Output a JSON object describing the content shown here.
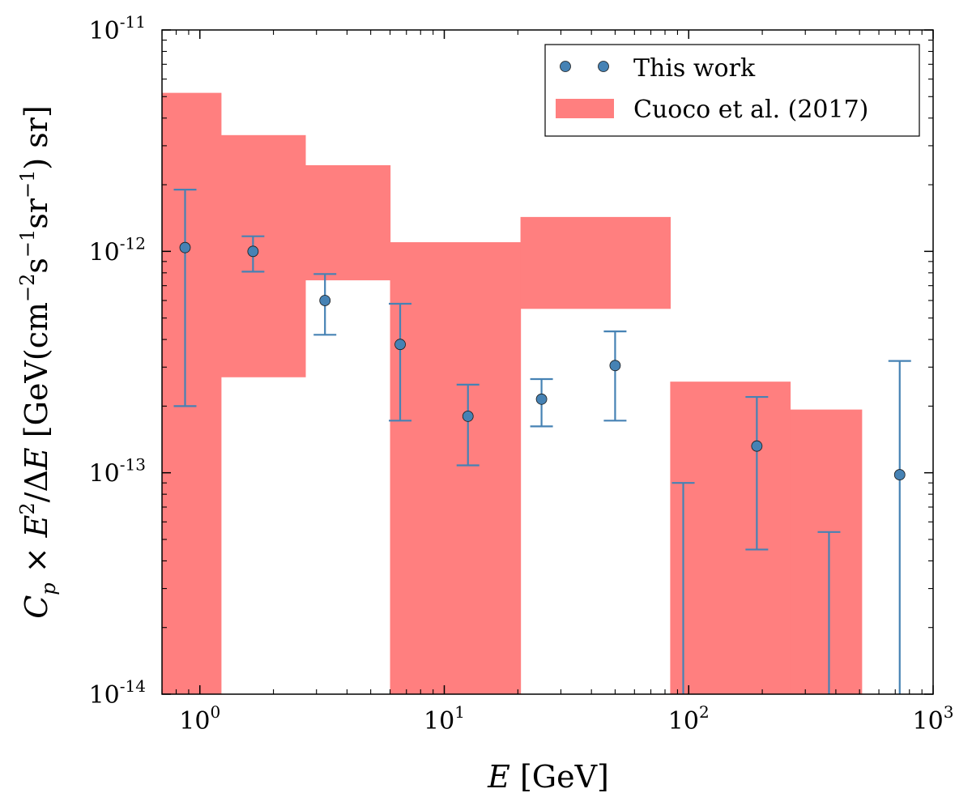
{
  "chart_data": {
    "type": "scatter",
    "title": "",
    "xlabel": "E [GeV]",
    "ylabel": "C_p × E^2/ΔE [GeV(cm^-2 s^-1 sr^-1) sr]",
    "x_scale": "log",
    "y_scale": "log",
    "xlim": [
      0.7,
      1000
    ],
    "ylim": [
      1e-14,
      1e-11
    ],
    "x_ticks": [
      {
        "value": 1,
        "base": "10",
        "exp": "0"
      },
      {
        "value": 10,
        "base": "10",
        "exp": "1"
      },
      {
        "value": 100,
        "base": "10",
        "exp": "2"
      },
      {
        "value": 1000,
        "base": "10",
        "exp": "3"
      }
    ],
    "y_ticks": [
      {
        "value": 1e-14,
        "base": "10",
        "exp": "-14"
      },
      {
        "value": 1e-13,
        "base": "10",
        "exp": "-13"
      },
      {
        "value": 1e-12,
        "base": "10",
        "exp": "-12"
      },
      {
        "value": 1e-11,
        "base": "10",
        "exp": "-11"
      }
    ],
    "colors": {
      "points": "#4682b4",
      "band": "#ff7f7f"
    },
    "legend": {
      "position": "top-right",
      "entries": [
        {
          "label": "This work",
          "kind": "points"
        },
        {
          "label": "Cuoco et al. (2017)",
          "kind": "band"
        }
      ]
    },
    "series": [
      {
        "name": "This work",
        "points": [
          {
            "x": 0.87,
            "y": 1.04e-12,
            "yerr_lo": 2e-13,
            "yerr_hi": 1.9e-12
          },
          {
            "x": 1.65,
            "y": 1e-12,
            "yerr_lo": 8.1e-13,
            "yerr_hi": 1.17e-12
          },
          {
            "x": 3.25,
            "y": 6e-13,
            "yerr_lo": 4.2e-13,
            "yerr_hi": 7.9e-13
          },
          {
            "x": 6.6,
            "y": 3.8e-13,
            "yerr_lo": 1.72e-13,
            "yerr_hi": 5.8e-13
          },
          {
            "x": 12.5,
            "y": 1.8e-13,
            "yerr_lo": 1.08e-13,
            "yerr_hi": 2.5e-13
          },
          {
            "x": 25,
            "y": 2.15e-13,
            "yerr_lo": 1.62e-13,
            "yerr_hi": 2.65e-13
          },
          {
            "x": 50,
            "y": 3.05e-13,
            "yerr_lo": 1.72e-13,
            "yerr_hi": 4.35e-13
          },
          {
            "x": 95,
            "y": null,
            "yerr_lo": 1e-14,
            "yerr_hi": 9e-14
          },
          {
            "x": 190,
            "y": 1.32e-13,
            "yerr_lo": 4.5e-14,
            "yerr_hi": 2.2e-13
          },
          {
            "x": 375,
            "y": null,
            "yerr_lo": 1e-14,
            "yerr_hi": 5.4e-14
          },
          {
            "x": 730,
            "y": 9.8e-14,
            "yerr_lo": 1e-14,
            "yerr_hi": 3.2e-13
          }
        ]
      },
      {
        "name": "Cuoco et al. (2017)",
        "bands": [
          {
            "x0": 0.7,
            "x1": 1.22,
            "y_lo": 1e-14,
            "y_hi": 5.2e-12
          },
          {
            "x0": 1.22,
            "x1": 2.7,
            "y_lo": 2.7e-13,
            "y_hi": 3.35e-12
          },
          {
            "x0": 2.7,
            "x1": 6.0,
            "y_lo": 7.4e-13,
            "y_hi": 2.45e-12
          },
          {
            "x0": 6.0,
            "x1": 20.5,
            "y_lo": 1e-14,
            "y_hi": 1.1e-12
          },
          {
            "x0": 20.5,
            "x1": 84,
            "y_lo": 5.5e-13,
            "y_hi": 1.43e-12
          },
          {
            "x0": 84,
            "x1": 260,
            "y_lo": 1e-14,
            "y_hi": 2.58e-13
          },
          {
            "x0": 260,
            "x1": 510,
            "y_lo": 1e-14,
            "y_hi": 1.93e-13
          }
        ]
      }
    ]
  }
}
